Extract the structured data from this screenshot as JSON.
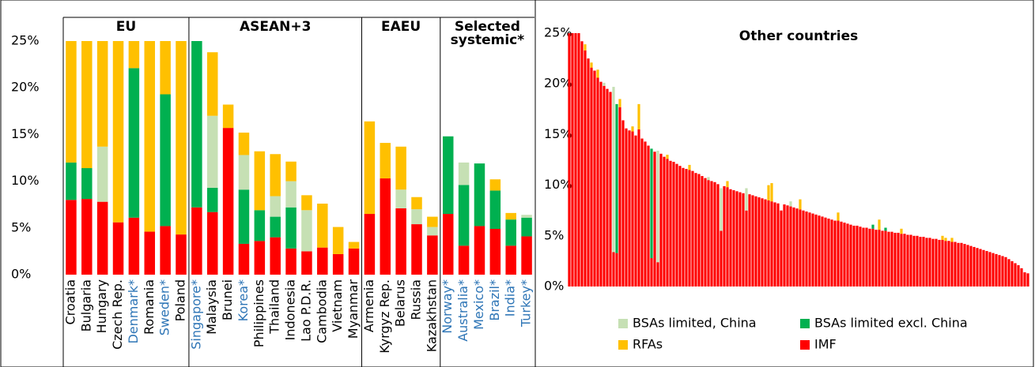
{
  "chart_data": [
    {
      "type": "stacked_bar_grouped",
      "ylim": [
        0,
        25
      ],
      "yticks": [
        {
          "value": 0,
          "label": "0%"
        },
        {
          "value": 5,
          "label": "5%"
        },
        {
          "value": 10,
          "label": "10%"
        },
        {
          "value": 15,
          "label": "15%"
        },
        {
          "value": 20,
          "label": "20%"
        },
        {
          "value": 25,
          "label": "25%"
        }
      ],
      "grid": false,
      "groups": [
        {
          "label": "EU",
          "categories": [
            "Croatia",
            "Bulgaria",
            "Hungary",
            "Czech Rep.",
            "Denmark*",
            "Romania",
            "Sweden*",
            "Poland"
          ]
        },
        {
          "label": "ASEAN+3",
          "categories": [
            "Singapore*",
            "Malaysia",
            "Brunei",
            "Korea*",
            "Philippines",
            "Thailand",
            "Indonesia",
            "Lao P.D.R.",
            "Cambodia",
            "Vietnam",
            "Myanmar"
          ]
        },
        {
          "label": "EAEU",
          "categories": [
            "Armenia",
            "Kyrgyz Rep.",
            "Belarus",
            "Russia",
            "Kazakhstan"
          ]
        },
        {
          "label": "Selected systemic*",
          "categories": [
            "Norway*",
            "Australia*",
            "Mexico*",
            "Brazil*",
            "India*",
            "Turkey*"
          ]
        }
      ],
      "category_colors": [
        "#000000",
        "#000000",
        "#000000",
        "#000000",
        "#2e75b6",
        "#000000",
        "#2e75b6",
        "#000000",
        "#2e75b6",
        "#000000",
        "#000000",
        "#2e75b6",
        "#000000",
        "#000000",
        "#000000",
        "#000000",
        "#000000",
        "#000000",
        "#000000",
        "#000000",
        "#000000",
        "#000000",
        "#000000",
        "#000000",
        "#2e75b6",
        "#2e75b6",
        "#2e75b6",
        "#2e75b6",
        "#2e75b6",
        "#2e75b6"
      ],
      "series": [
        {
          "color": "#ff0000",
          "values": [
            8,
            8.1,
            7.8,
            5.6,
            6.1,
            4.6,
            5.2,
            4.3,
            7.2,
            6.7,
            15.7,
            3.3,
            3.6,
            4,
            2.8,
            2.5,
            2.9,
            2.2,
            2.8,
            6.5,
            10.3,
            7.1,
            5.4,
            4.2,
            6.5,
            3.1,
            5.2,
            4.9,
            3.1,
            4.1
          ]
        },
        {
          "color": "#00b050",
          "values": [
            4,
            3.3,
            0,
            0,
            16,
            0,
            14.1,
            0,
            17.8,
            2.6,
            0,
            5.8,
            3.3,
            2.2,
            4.4,
            0,
            0,
            0,
            0,
            0,
            0,
            0,
            0,
            0,
            8.3,
            6.5,
            6.7,
            4.1,
            2.8,
            2
          ]
        },
        {
          "color": "#c6e0b4",
          "values": [
            0,
            0,
            5.9,
            0,
            0,
            0,
            0,
            0,
            0,
            7.7,
            0,
            3.7,
            0,
            2.2,
            2.8,
            4.4,
            0,
            0,
            0,
            0,
            0,
            2,
            1.6,
            0.9,
            0,
            2.4,
            0,
            0,
            0,
            0.3
          ]
        },
        {
          "color": "#ffc000",
          "values": [
            13,
            13.6,
            11.3,
            19.4,
            2.9,
            20.4,
            5.7,
            20.7,
            0,
            6.8,
            2.5,
            2.4,
            6.3,
            4.5,
            2.1,
            1.6,
            4.7,
            2.9,
            0.7,
            9.9,
            3.8,
            4.6,
            1.3,
            1.1,
            0,
            0,
            0,
            1.2,
            0.7,
            0
          ]
        }
      ]
    },
    {
      "type": "stacked_bar",
      "title": "Other countries",
      "ylim": [
        0,
        25
      ],
      "yticks": [
        {
          "value": 0,
          "label": "0%"
        },
        {
          "value": 5,
          "label": "5%"
        },
        {
          "value": 10,
          "label": "10%"
        },
        {
          "value": 15,
          "label": "15%"
        },
        {
          "value": 20,
          "label": "20%"
        },
        {
          "value": 25,
          "label": "25%"
        }
      ],
      "grid": false,
      "legend": "bottom",
      "series": [
        {
          "name": "IMF",
          "color": "#ff0000",
          "values": [
            25,
            25,
            25,
            25,
            24.2,
            23.3,
            22.5,
            21.6,
            21.3,
            20.6,
            20.2,
            19.8,
            19.5,
            19.2,
            3.4,
            3.3,
            17.7,
            16.4,
            15.6,
            15.4,
            15.3,
            14.9,
            15.5,
            14.6,
            14.3,
            13.9,
            2.8,
            13.3,
            2.4,
            13.1,
            12.8,
            12.6,
            12.4,
            12.3,
            12.1,
            11.9,
            11.7,
            11.6,
            11.5,
            11.4,
            11.2,
            11.1,
            10.9,
            10.7,
            10.5,
            10.4,
            10.3,
            10.1,
            5.5,
            9.9,
            9.8,
            9.6,
            9.5,
            9.4,
            9.3,
            9.2,
            7.5,
            9.1,
            9.0,
            8.9,
            8.8,
            8.7,
            8.6,
            8.5,
            8.4,
            8.3,
            8.2,
            7.5,
            8.1,
            8.0,
            7.9,
            7.8,
            7.7,
            7.6,
            7.5,
            7.4,
            7.3,
            7.2,
            7.1,
            7.0,
            6.9,
            6.8,
            6.7,
            6.6,
            6.5,
            6.5,
            6.4,
            6.3,
            6.2,
            6.1,
            6.0,
            6.0,
            5.9,
            5.8,
            5.8,
            5.7,
            5.7,
            5.6,
            5.6,
            5.5,
            5.5,
            5.4,
            5.4,
            5.3,
            5.3,
            5.2,
            5.2,
            5.1,
            5.1,
            5.0,
            5.0,
            4.9,
            4.9,
            4.8,
            4.8,
            4.7,
            4.7,
            4.6,
            4.6,
            4.5,
            4.5,
            4.4,
            4.4,
            4.3,
            4.3,
            4.2,
            4.1,
            4.0,
            3.9,
            3.8,
            3.7,
            3.6,
            3.5,
            3.4,
            3.3,
            3.2,
            3.1,
            3.0,
            2.9,
            2.7,
            2.5,
            2.3,
            2.1,
            1.8,
            1.4,
            1.3
          ]
        },
        {
          "name": "BSAs limited excl. China",
          "color": "#00b050",
          "values": [
            0,
            0,
            0,
            0,
            0,
            0,
            0,
            0,
            0,
            0,
            0,
            0,
            0,
            0,
            0,
            14.7,
            0,
            0,
            0,
            0,
            0,
            0,
            0,
            0,
            0,
            0,
            10.8,
            0,
            0,
            0,
            0,
            0,
            0,
            0,
            0,
            0,
            0,
            0,
            0,
            0,
            0,
            0,
            0,
            0,
            0,
            0,
            0,
            0,
            0,
            0,
            0,
            0,
            0,
            0,
            0,
            0,
            0,
            0,
            0,
            0,
            0,
            0,
            0,
            0,
            0,
            0,
            0,
            0,
            0,
            0,
            0,
            0,
            0,
            0,
            0,
            0,
            0,
            0,
            0,
            0,
            0,
            0,
            0,
            0,
            0,
            0,
            0,
            0,
            0,
            0,
            0,
            0,
            0,
            0,
            0,
            0,
            0.4,
            0,
            0,
            0,
            0.3,
            0,
            0,
            0,
            0,
            0,
            0,
            0,
            0,
            0,
            0,
            0,
            0,
            0,
            0,
            0,
            0,
            0,
            0,
            0,
            0,
            0,
            0,
            0,
            0,
            0,
            0,
            0,
            0,
            0,
            0,
            0,
            0,
            0,
            0,
            0,
            0,
            0,
            0,
            0,
            0,
            0,
            0,
            0,
            0,
            0
          ]
        },
        {
          "name": "BSAs limited, China",
          "color": "#c6e0b4",
          "values": [
            0,
            0,
            0,
            0,
            0,
            0,
            0,
            0,
            0,
            0,
            0,
            0.3,
            0,
            0,
            16.3,
            0,
            0,
            0,
            0,
            0,
            0,
            0,
            0,
            0,
            0,
            0,
            0,
            0,
            11,
            0,
            0,
            0,
            0,
            0,
            0,
            0,
            0,
            0,
            0,
            0,
            0,
            0,
            0,
            0,
            0.3,
            0,
            0,
            0,
            4.2,
            0,
            0,
            0,
            0,
            0,
            0,
            0,
            2.2,
            0,
            0,
            0,
            0,
            0,
            0,
            0,
            0,
            0,
            0,
            0,
            0,
            0,
            0.5,
            0,
            0,
            0,
            0,
            0,
            0,
            0,
            0,
            0,
            0,
            0,
            0,
            0,
            0,
            0,
            0,
            0,
            0,
            0,
            0,
            0,
            0,
            0,
            0,
            0,
            0,
            0,
            0,
            0,
            0,
            0,
            0,
            0,
            0,
            0,
            0,
            0,
            0,
            0,
            0,
            0,
            0,
            0,
            0,
            0,
            0,
            0,
            0,
            0,
            0,
            0,
            0,
            0,
            0,
            0,
            0,
            0,
            0,
            0,
            0,
            0,
            0,
            0,
            0,
            0,
            0,
            0,
            0,
            0,
            0,
            0,
            0,
            0,
            0,
            0
          ]
        },
        {
          "name": "RFAs",
          "color": "#ffc000",
          "values": [
            0,
            0,
            0,
            0,
            0,
            0.6,
            0,
            0.5,
            0,
            0.8,
            0,
            0,
            0,
            0,
            0,
            0,
            0.8,
            0,
            0,
            0,
            0.5,
            0,
            2.5,
            0,
            0,
            0,
            0,
            0,
            0,
            0,
            0,
            0.4,
            0,
            0,
            0,
            0,
            0,
            0,
            0.5,
            0,
            0,
            0,
            0,
            0,
            0,
            0,
            0,
            0,
            0,
            0,
            0.6,
            0,
            0,
            0,
            0,
            0,
            0,
            0,
            0,
            0,
            0,
            0,
            0,
            1.5,
            1.8,
            0,
            0,
            0,
            0,
            0,
            0,
            0,
            0,
            1.0,
            0,
            0,
            0,
            0,
            0,
            0,
            0,
            0,
            0,
            0,
            0,
            0.8,
            0,
            0,
            0,
            0,
            0,
            0,
            0,
            0,
            0,
            0,
            0,
            0,
            1.0,
            0,
            0,
            0,
            0,
            0,
            0,
            0.5,
            0,
            0,
            0,
            0,
            0,
            0,
            0,
            0,
            0,
            0,
            0,
            0,
            0.4,
            0.3,
            0,
            0.4,
            0,
            0,
            0,
            0,
            0,
            0,
            0,
            0,
            0,
            0,
            0,
            0,
            0,
            0,
            0,
            0,
            0,
            0,
            0,
            0,
            0,
            0,
            0,
            0
          ]
        }
      ]
    }
  ]
}
